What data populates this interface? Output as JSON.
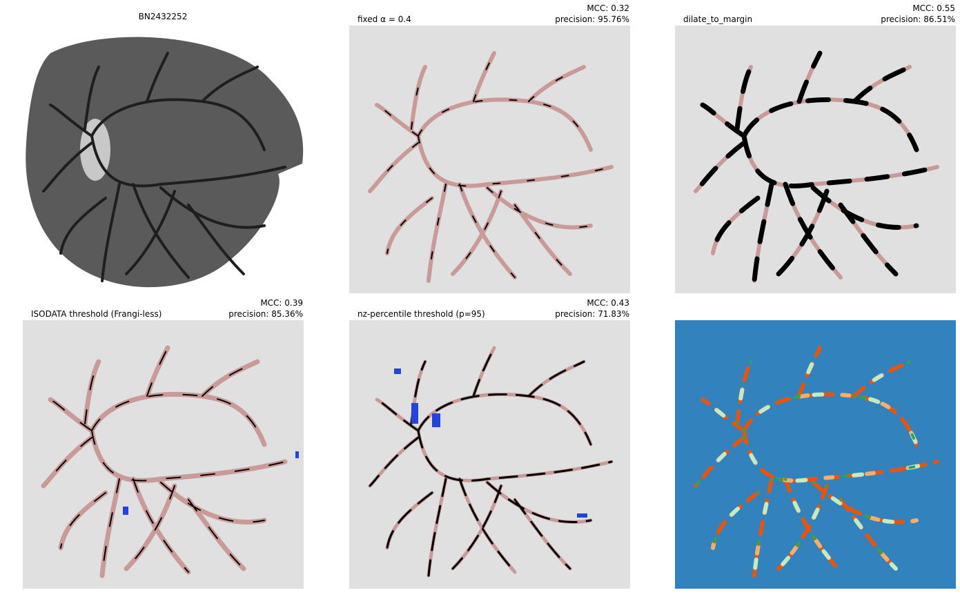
{
  "panels": [
    {
      "title": "BN2432252"
    },
    {
      "title": "fixed α = 0.4",
      "mcc": "MCC: 0.32",
      "precision": "precision: 95.76%"
    },
    {
      "title": "dilate_to_margin",
      "mcc": "MCC: 0.55",
      "precision": "precision: 86.51%"
    },
    {
      "title": "ISODATA threshold (Frangi-less)",
      "mcc": "MCC: 0.39",
      "precision": "precision: 85.36%"
    },
    {
      "title": "nz-percentile threshold (p=95)",
      "mcc": "MCC: 0.43",
      "precision": "precision: 71.83%"
    },
    {}
  ]
}
